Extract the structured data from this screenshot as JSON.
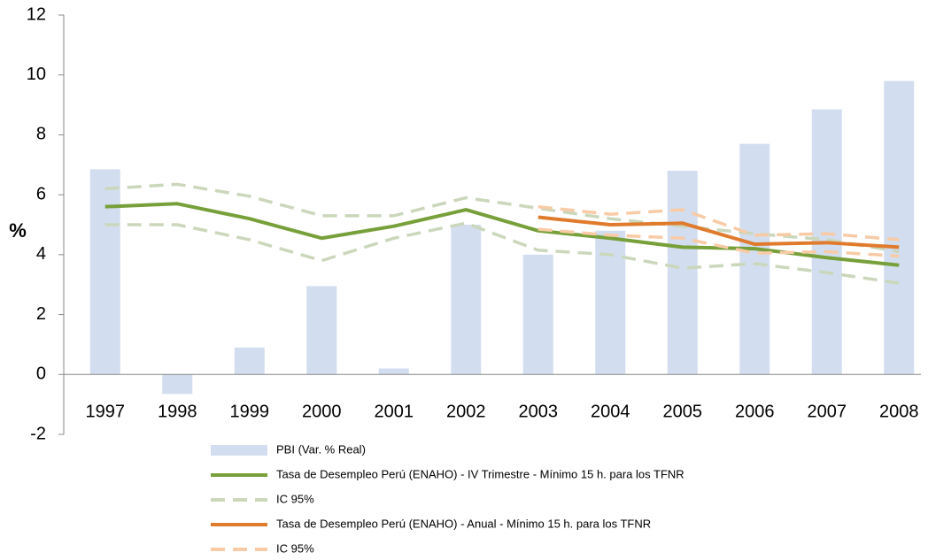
{
  "chart_data": {
    "type": "combo",
    "y_label": "%",
    "categories": [
      "1997",
      "1998",
      "1999",
      "2000",
      "2001",
      "2002",
      "2003",
      "2004",
      "2005",
      "2006",
      "2007",
      "2008"
    ],
    "ylim": [
      -2,
      12
    ],
    "yticks": [
      -2,
      0,
      2,
      4,
      6,
      8,
      10,
      12
    ],
    "legend": "bottom",
    "series": [
      {
        "name": "PBI (Var. % Real)",
        "type": "bar",
        "color": "#d2deef",
        "values": [
          6.85,
          -0.65,
          0.9,
          2.95,
          0.2,
          5.0,
          4.0,
          4.8,
          6.8,
          7.7,
          8.85,
          9.8
        ]
      },
      {
        "name": "Tasa de Desempleo Perú (ENAHO) - IV Trimestre - Mínimo 15 h. para los TFNR",
        "type": "line",
        "color": "#77a03a",
        "values": [
          5.6,
          5.7,
          5.2,
          4.55,
          4.95,
          5.5,
          4.8,
          4.55,
          4.25,
          4.2,
          3.9,
          3.65
        ]
      },
      {
        "name": "IC 95%",
        "type": "band",
        "color": "#cbd7bb",
        "upper": [
          6.2,
          6.35,
          5.95,
          5.3,
          5.3,
          5.9,
          5.55,
          5.2,
          4.95,
          4.7,
          4.5,
          4.1
        ],
        "lower": [
          5.0,
          5.0,
          4.5,
          3.8,
          4.55,
          5.05,
          4.15,
          4.0,
          3.55,
          3.7,
          3.4,
          3.05
        ]
      },
      {
        "name": "Tasa de Desempleo Perú (ENAHO) - Anual - Mínimo 15 h. para los TFNR",
        "type": "line",
        "color": "#e07b2e",
        "values": [
          null,
          null,
          null,
          null,
          null,
          null,
          5.25,
          5.0,
          5.05,
          4.35,
          4.4,
          4.25
        ]
      },
      {
        "name": "IC 95%",
        "type": "band",
        "color": "#f8cba6",
        "upper": [
          null,
          null,
          null,
          null,
          null,
          null,
          5.6,
          5.35,
          5.5,
          4.65,
          4.7,
          4.5
        ],
        "lower": [
          null,
          null,
          null,
          null,
          null,
          null,
          4.85,
          4.65,
          4.55,
          4.05,
          4.1,
          3.95
        ]
      }
    ]
  }
}
